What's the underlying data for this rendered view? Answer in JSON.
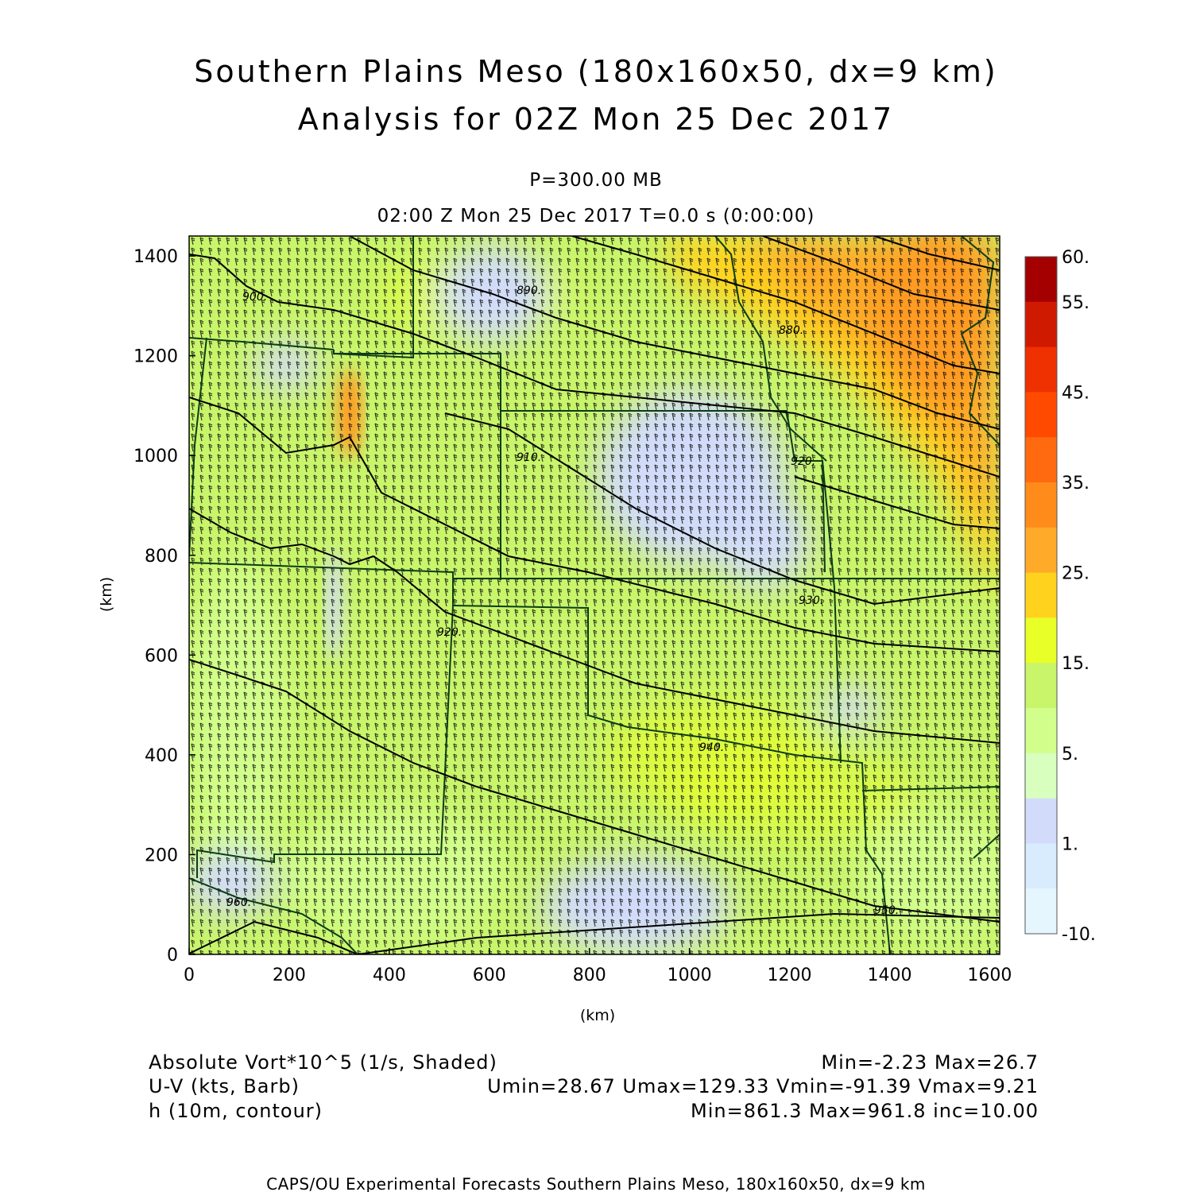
{
  "title": {
    "line1": "Southern Plains Meso (180x160x50, dx=9 km)",
    "line2": "Analysis for 02Z Mon 25 Dec 2017"
  },
  "subtitle": {
    "level": "P=300.00 MB",
    "time": "02:00 Z Mon 25 Dec 2017    T=0.0 s (0:00:00)"
  },
  "axes": {
    "x_label": "(km)",
    "y_label": "(km)",
    "x_ticks": [
      "0",
      "200",
      "400",
      "600",
      "800",
      "1000",
      "1200",
      "1400",
      "1600"
    ],
    "y_ticks": [
      "0",
      "200",
      "400",
      "600",
      "800",
      "1000",
      "1200",
      "1400"
    ],
    "x_range": [
      0,
      1620
    ],
    "y_range": [
      0,
      1440
    ]
  },
  "colorbar": {
    "labels": [
      "60.",
      "55.",
      "45.",
      "35.",
      "25.",
      "15.",
      "5.",
      "1.",
      "-10."
    ],
    "colors": [
      "#a50000",
      "#d01a00",
      "#ef3000",
      "#ff4a00",
      "#ff6a10",
      "#ff8c1a",
      "#ffaa28",
      "#ffd21e",
      "#e8ff28",
      "#c8f56a",
      "#d2ff8c",
      "#d8ffbe",
      "#d2dcfa",
      "#d8ecfe",
      "#e6f6fe"
    ]
  },
  "contours": {
    "labels": [
      "900.",
      "890.",
      "880.",
      "910.",
      "920.",
      "920.",
      "930.",
      "940.",
      "950.",
      "960."
    ]
  },
  "legend": {
    "field1_name": "Absolute Vort*10^5 (1/s, Shaded)",
    "field1_stats": "Min=-2.23 Max=26.7",
    "field2_name": "U-V (kts, Barb)",
    "field2_stats": "Umin=28.67 Umax=129.33 Vmin=-91.39 Vmax=9.21",
    "field3_name": "h (10m, contour)",
    "field3_stats": "Min=861.3 Max=961.8 inc=10.00"
  },
  "footer": "CAPS/OU Experimental Forecasts  Southern Plains Meso, 180x160x50, dx=9 km"
}
